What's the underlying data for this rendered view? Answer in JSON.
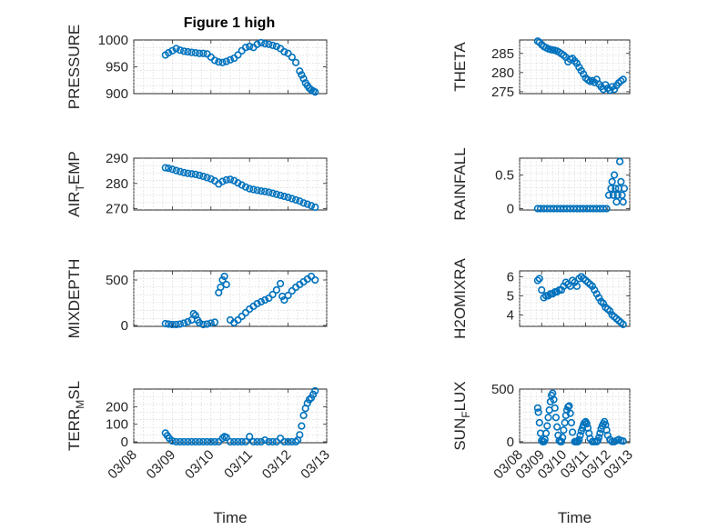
{
  "figure": {
    "title": "Figure 1 high",
    "marker_color": "#0072BD"
  },
  "chart_data": [
    {
      "type": "scatter",
      "ylabel": "PRESSURE",
      "ylim": [
        900,
        1000
      ],
      "yticks": [
        900,
        950,
        1000
      ],
      "xlim": [
        0,
        5
      ],
      "series": [
        {
          "name": "PRESSURE",
          "x": [
            0.82,
            0.9,
            1.0,
            1.1,
            1.2,
            1.3,
            1.4,
            1.5,
            1.6,
            1.7,
            1.8,
            1.9,
            2.0,
            2.1,
            2.2,
            2.3,
            2.4,
            2.5,
            2.6,
            2.7,
            2.8,
            2.9,
            3.0,
            3.1,
            3.2,
            3.3,
            3.4,
            3.5,
            3.6,
            3.7,
            3.8,
            3.9,
            4.0,
            4.1,
            4.2,
            4.3,
            4.35,
            4.4,
            4.45,
            4.5,
            4.55,
            4.6,
            4.65,
            4.7
          ],
          "y": [
            972,
            976,
            980,
            984,
            981,
            979,
            978,
            977,
            976,
            975,
            975,
            974,
            968,
            962,
            959,
            958,
            960,
            963,
            966,
            972,
            980,
            986,
            988,
            986,
            992,
            995,
            993,
            992,
            990,
            988,
            984,
            978,
            975,
            968,
            958,
            942,
            935,
            928,
            920,
            915,
            910,
            907,
            905,
            903
          ]
        }
      ]
    },
    {
      "type": "scatter",
      "ylabel": "THETA",
      "ylim": [
        274.5,
        288.5
      ],
      "yticks": [
        275,
        280,
        285
      ],
      "xlim": [
        0,
        5
      ],
      "series": [
        {
          "name": "THETA",
          "x": [
            0.82,
            0.9,
            1.0,
            1.1,
            1.2,
            1.3,
            1.4,
            1.5,
            1.6,
            1.7,
            1.8,
            1.9,
            2.0,
            2.1,
            2.2,
            2.3,
            2.4,
            2.5,
            2.6,
            2.7,
            2.8,
            2.9,
            3.0,
            3.1,
            3.2,
            3.3,
            3.4,
            3.5,
            3.6,
            3.7,
            3.8,
            3.9,
            4.0,
            4.1,
            4.2,
            4.3,
            4.4,
            4.5,
            4.6,
            4.7
          ],
          "y": [
            288.2,
            287.9,
            287.3,
            286.8,
            286.5,
            286.2,
            286.0,
            285.9,
            285.8,
            285.6,
            285.3,
            284.9,
            284.5,
            284.0,
            282.8,
            283.5,
            283.7,
            283.0,
            282.4,
            281.4,
            280.5,
            279.6,
            278.6,
            278.1,
            277.7,
            277.9,
            277.4,
            278.2,
            277.0,
            276.3,
            275.6,
            276.8,
            275.9,
            275.4,
            276.3,
            275.6,
            276.6,
            277.3,
            277.8,
            278.2
          ]
        }
      ]
    },
    {
      "type": "scatter",
      "ylabel": "AIR_TEMP",
      "ylim": [
        269.5,
        290
      ],
      "yticks": [
        270,
        280,
        290
      ],
      "xlim": [
        0,
        5
      ],
      "series": [
        {
          "name": "AIR_TEMP",
          "x": [
            0.82,
            0.9,
            1.0,
            1.1,
            1.2,
            1.3,
            1.4,
            1.5,
            1.6,
            1.7,
            1.8,
            1.9,
            2.0,
            2.1,
            2.2,
            2.3,
            2.4,
            2.5,
            2.6,
            2.7,
            2.8,
            2.9,
            3.0,
            3.1,
            3.2,
            3.3,
            3.4,
            3.5,
            3.6,
            3.7,
            3.8,
            3.9,
            4.0,
            4.1,
            4.2,
            4.3,
            4.4,
            4.5,
            4.6,
            4.7
          ],
          "y": [
            286.2,
            286.0,
            285.6,
            285.1,
            284.7,
            284.3,
            284.0,
            283.8,
            283.6,
            283.2,
            282.8,
            282.3,
            281.8,
            281.0,
            279.8,
            280.8,
            281.4,
            281.6,
            281.1,
            280.2,
            279.4,
            278.6,
            277.9,
            277.6,
            277.3,
            277.0,
            276.8,
            276.5,
            276.1,
            275.7,
            275.3,
            274.9,
            274.5,
            274.0,
            273.5,
            273.0,
            272.3,
            271.8,
            271.2,
            270.6
          ]
        }
      ]
    },
    {
      "type": "scatter",
      "ylabel": "RAINFALL",
      "ylim": [
        -0.02,
        0.75
      ],
      "yticks": [
        0,
        0.5
      ],
      "xlim": [
        0,
        5
      ],
      "series": [
        {
          "name": "RAINFALL",
          "x": [
            0.82,
            0.95,
            1.1,
            1.25,
            1.4,
            1.55,
            1.7,
            1.85,
            2.0,
            2.15,
            2.3,
            2.45,
            2.6,
            2.75,
            2.9,
            3.05,
            3.2,
            3.35,
            3.5,
            3.65,
            3.8,
            3.95,
            4.05,
            4.15,
            4.2,
            4.25,
            4.3,
            4.35,
            4.4,
            4.45,
            4.5,
            4.55,
            4.6,
            4.65,
            4.7,
            4.75
          ],
          "y": [
            0,
            0,
            0,
            0,
            0,
            0,
            0,
            0,
            0,
            0,
            0,
            0,
            0,
            0,
            0,
            0,
            0,
            0,
            0,
            0,
            0,
            0,
            0.2,
            0.3,
            0.4,
            0.2,
            0.5,
            0.3,
            0.1,
            0.2,
            0.3,
            0.7,
            0.4,
            0.2,
            0.1,
            0.3
          ]
        }
      ]
    },
    {
      "type": "scatter",
      "ylabel": "MIXDEPTH",
      "ylim": [
        -10,
        600
      ],
      "yticks": [
        0,
        500
      ],
      "xlim": [
        0,
        5
      ],
      "series": [
        {
          "name": "MIXDEPTH",
          "x": [
            0.82,
            0.9,
            1.0,
            1.1,
            1.2,
            1.3,
            1.4,
            1.5,
            1.55,
            1.6,
            1.65,
            1.7,
            1.8,
            1.9,
            2.0,
            2.1,
            2.2,
            2.25,
            2.3,
            2.35,
            2.4,
            2.5,
            2.6,
            2.7,
            2.8,
            2.9,
            3.0,
            3.1,
            3.2,
            3.3,
            3.4,
            3.5,
            3.6,
            3.7,
            3.8,
            3.85,
            3.9,
            4.0,
            4.1,
            4.2,
            4.3,
            4.4,
            4.5,
            4.6,
            4.7
          ],
          "y": [
            20,
            15,
            10,
            10,
            15,
            25,
            40,
            60,
            130,
            110,
            60,
            30,
            10,
            15,
            25,
            35,
            360,
            420,
            500,
            540,
            450,
            60,
            30,
            60,
            100,
            140,
            180,
            210,
            240,
            260,
            280,
            300,
            340,
            390,
            460,
            320,
            280,
            330,
            380,
            420,
            450,
            480,
            510,
            540,
            500
          ]
        }
      ]
    },
    {
      "type": "scatter",
      "ylabel": "H2OMIXRA",
      "ylim": [
        3.4,
        6.3
      ],
      "yticks": [
        4,
        5,
        6
      ],
      "xlim": [
        0,
        5
      ],
      "series": [
        {
          "name": "H2OMIXRA",
          "x": [
            0.82,
            0.9,
            1.0,
            1.1,
            1.2,
            1.3,
            1.4,
            1.5,
            1.6,
            1.7,
            1.8,
            1.9,
            2.0,
            2.1,
            2.2,
            2.3,
            2.4,
            2.5,
            2.6,
            2.7,
            2.8,
            2.9,
            3.0,
            3.1,
            3.2,
            3.3,
            3.4,
            3.5,
            3.6,
            3.7,
            3.8,
            3.9,
            4.0,
            4.1,
            4.2,
            4.3,
            4.4,
            4.5,
            4.6,
            4.7
          ],
          "y": [
            5.8,
            5.9,
            5.3,
            4.9,
            5.0,
            5.0,
            5.1,
            5.1,
            5.2,
            5.2,
            5.3,
            5.3,
            5.5,
            5.7,
            5.6,
            5.5,
            5.8,
            5.7,
            5.5,
            5.9,
            6.0,
            5.9,
            5.8,
            5.7,
            5.6,
            5.5,
            5.3,
            5.1,
            4.9,
            4.7,
            4.6,
            4.4,
            4.3,
            4.2,
            4.0,
            3.9,
            3.8,
            3.7,
            3.6,
            3.5
          ]
        }
      ]
    },
    {
      "type": "scatter",
      "ylabel": "TERR_MSL",
      "ylim": [
        -5,
        300
      ],
      "yticks": [
        0,
        100,
        200
      ],
      "xlim": [
        0,
        5
      ],
      "series": [
        {
          "name": "TERR_MSL",
          "x": [
            0.82,
            0.87,
            0.92,
            1.0,
            1.1,
            1.2,
            1.3,
            1.4,
            1.5,
            1.6,
            1.7,
            1.8,
            1.9,
            2.0,
            2.1,
            2.2,
            2.3,
            2.35,
            2.4,
            2.5,
            2.6,
            2.7,
            2.8,
            2.9,
            3.0,
            3.1,
            3.2,
            3.3,
            3.4,
            3.5,
            3.6,
            3.7,
            3.8,
            3.9,
            4.0,
            4.1,
            4.2,
            4.25,
            4.3,
            4.35,
            4.4,
            4.45,
            4.5,
            4.55,
            4.6,
            4.65,
            4.7
          ],
          "y": [
            50,
            35,
            20,
            5,
            0,
            0,
            0,
            0,
            0,
            0,
            0,
            0,
            0,
            0,
            0,
            0,
            20,
            30,
            25,
            0,
            0,
            0,
            0,
            0,
            30,
            0,
            0,
            0,
            10,
            0,
            0,
            0,
            20,
            0,
            0,
            0,
            0,
            10,
            40,
            90,
            150,
            190,
            220,
            240,
            250,
            270,
            290
          ]
        }
      ]
    },
    {
      "type": "scatter",
      "ylabel": "SUN_FLUX",
      "ylim": [
        -10,
        500
      ],
      "yticks": [
        0,
        500
      ],
      "xlim": [
        0,
        5
      ],
      "series": [
        {
          "name": "SUN_FLUX",
          "x": [
            0.82,
            0.85,
            0.9,
            0.95,
            1.0,
            1.05,
            1.1,
            1.15,
            1.2,
            1.25,
            1.3,
            1.35,
            1.4,
            1.45,
            1.5,
            1.55,
            1.6,
            1.65,
            1.7,
            1.75,
            1.8,
            1.85,
            1.9,
            1.95,
            2.0,
            2.05,
            2.1,
            2.15,
            2.2,
            2.25,
            2.3,
            2.35,
            2.4,
            2.5,
            2.55,
            2.6,
            2.65,
            2.7,
            2.75,
            2.8,
            2.85,
            2.9,
            2.95,
            3.0,
            3.05,
            3.1,
            3.15,
            3.2,
            3.3,
            3.4,
            3.5,
            3.55,
            3.6,
            3.65,
            3.7,
            3.75,
            3.8,
            3.85,
            3.9,
            3.95,
            4.0,
            4.1,
            4.2,
            4.3,
            4.4,
            4.5,
            4.6,
            4.7
          ],
          "y": [
            320,
            280,
            180,
            80,
            10,
            0,
            0,
            20,
            80,
            150,
            230,
            300,
            380,
            440,
            460,
            400,
            320,
            230,
            140,
            60,
            10,
            0,
            0,
            40,
            110,
            180,
            250,
            300,
            330,
            340,
            270,
            180,
            90,
            0,
            0,
            0,
            0,
            20,
            60,
            100,
            130,
            160,
            180,
            190,
            170,
            130,
            80,
            30,
            0,
            0,
            0,
            10,
            40,
            80,
            120,
            150,
            170,
            190,
            160,
            110,
            60,
            20,
            0,
            0,
            10,
            20,
            10,
            5
          ]
        }
      ]
    }
  ],
  "axes": {
    "x_tick_labels": [
      "03/08",
      "03/09",
      "03/10",
      "03/11",
      "03/12",
      "03/13"
    ],
    "x_label": "Time"
  }
}
